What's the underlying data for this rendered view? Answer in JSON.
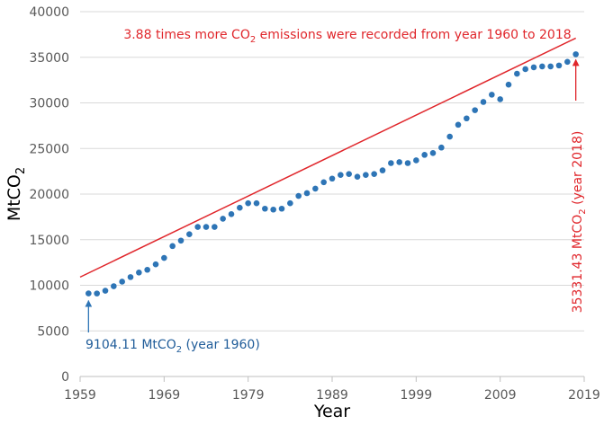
{
  "chart_data": {
    "type": "scatter",
    "xlabel": "Year",
    "ylabel_base": "MtCO",
    "ylabel_sub": "2",
    "xlim": [
      1959,
      2019
    ],
    "ylim": [
      0,
      40000
    ],
    "xticks": [
      1959,
      1969,
      1979,
      1989,
      1999,
      2009,
      2019
    ],
    "yticks": [
      0,
      5000,
      10000,
      15000,
      20000,
      25000,
      30000,
      35000,
      40000
    ],
    "grid": "horizontal",
    "series": [
      {
        "name": "CO2 emissions",
        "color": "#2e75b6",
        "x": [
          1960,
          1961,
          1962,
          1963,
          1964,
          1965,
          1966,
          1967,
          1968,
          1969,
          1970,
          1971,
          1972,
          1973,
          1974,
          1975,
          1976,
          1977,
          1978,
          1979,
          1980,
          1981,
          1982,
          1983,
          1984,
          1985,
          1986,
          1987,
          1988,
          1989,
          1990,
          1991,
          1992,
          1993,
          1994,
          1995,
          1996,
          1997,
          1998,
          1999,
          2000,
          2001,
          2002,
          2003,
          2004,
          2005,
          2006,
          2007,
          2008,
          2009,
          2010,
          2011,
          2012,
          2013,
          2014,
          2015,
          2016,
          2017,
          2018
        ],
        "y": [
          9104,
          9100,
          9400,
          9900,
          10400,
          10900,
          11400,
          11700,
          12300,
          13000,
          14300,
          14900,
          15600,
          16400,
          16400,
          16400,
          17300,
          17800,
          18500,
          19000,
          19000,
          18400,
          18300,
          18400,
          19000,
          19800,
          20100,
          20600,
          21300,
          21700,
          22100,
          22200,
          21900,
          22100,
          22200,
          22600,
          23400,
          23500,
          23400,
          23700,
          24300,
          24500,
          25100,
          26300,
          27600,
          28300,
          29200,
          30100,
          30900,
          30400,
          32000,
          33200,
          33700,
          33900,
          34000,
          34000,
          34100,
          34500,
          35331
        ]
      }
    ],
    "trendline": {
      "color": "#e0262b",
      "from": [
        1959,
        10900
      ],
      "to": [
        2018,
        37100
      ]
    },
    "annotations": {
      "top": {
        "before": "3.88 times more CO",
        "sub": "2",
        "after": " emissions were recorded from year 1960 to 2018",
        "color": "#e0262b"
      },
      "start": {
        "before": "9104.11 MtCO",
        "sub": "2",
        "after": " (year 1960)",
        "color": "#1f5c99",
        "x": 1960,
        "y": 9104.11
      },
      "end": {
        "before": "35331.43 MtCO",
        "sub": "2",
        "after": " (year 2018)",
        "color": "#e0262b",
        "x": 2018,
        "y": 35331.43
      }
    }
  }
}
